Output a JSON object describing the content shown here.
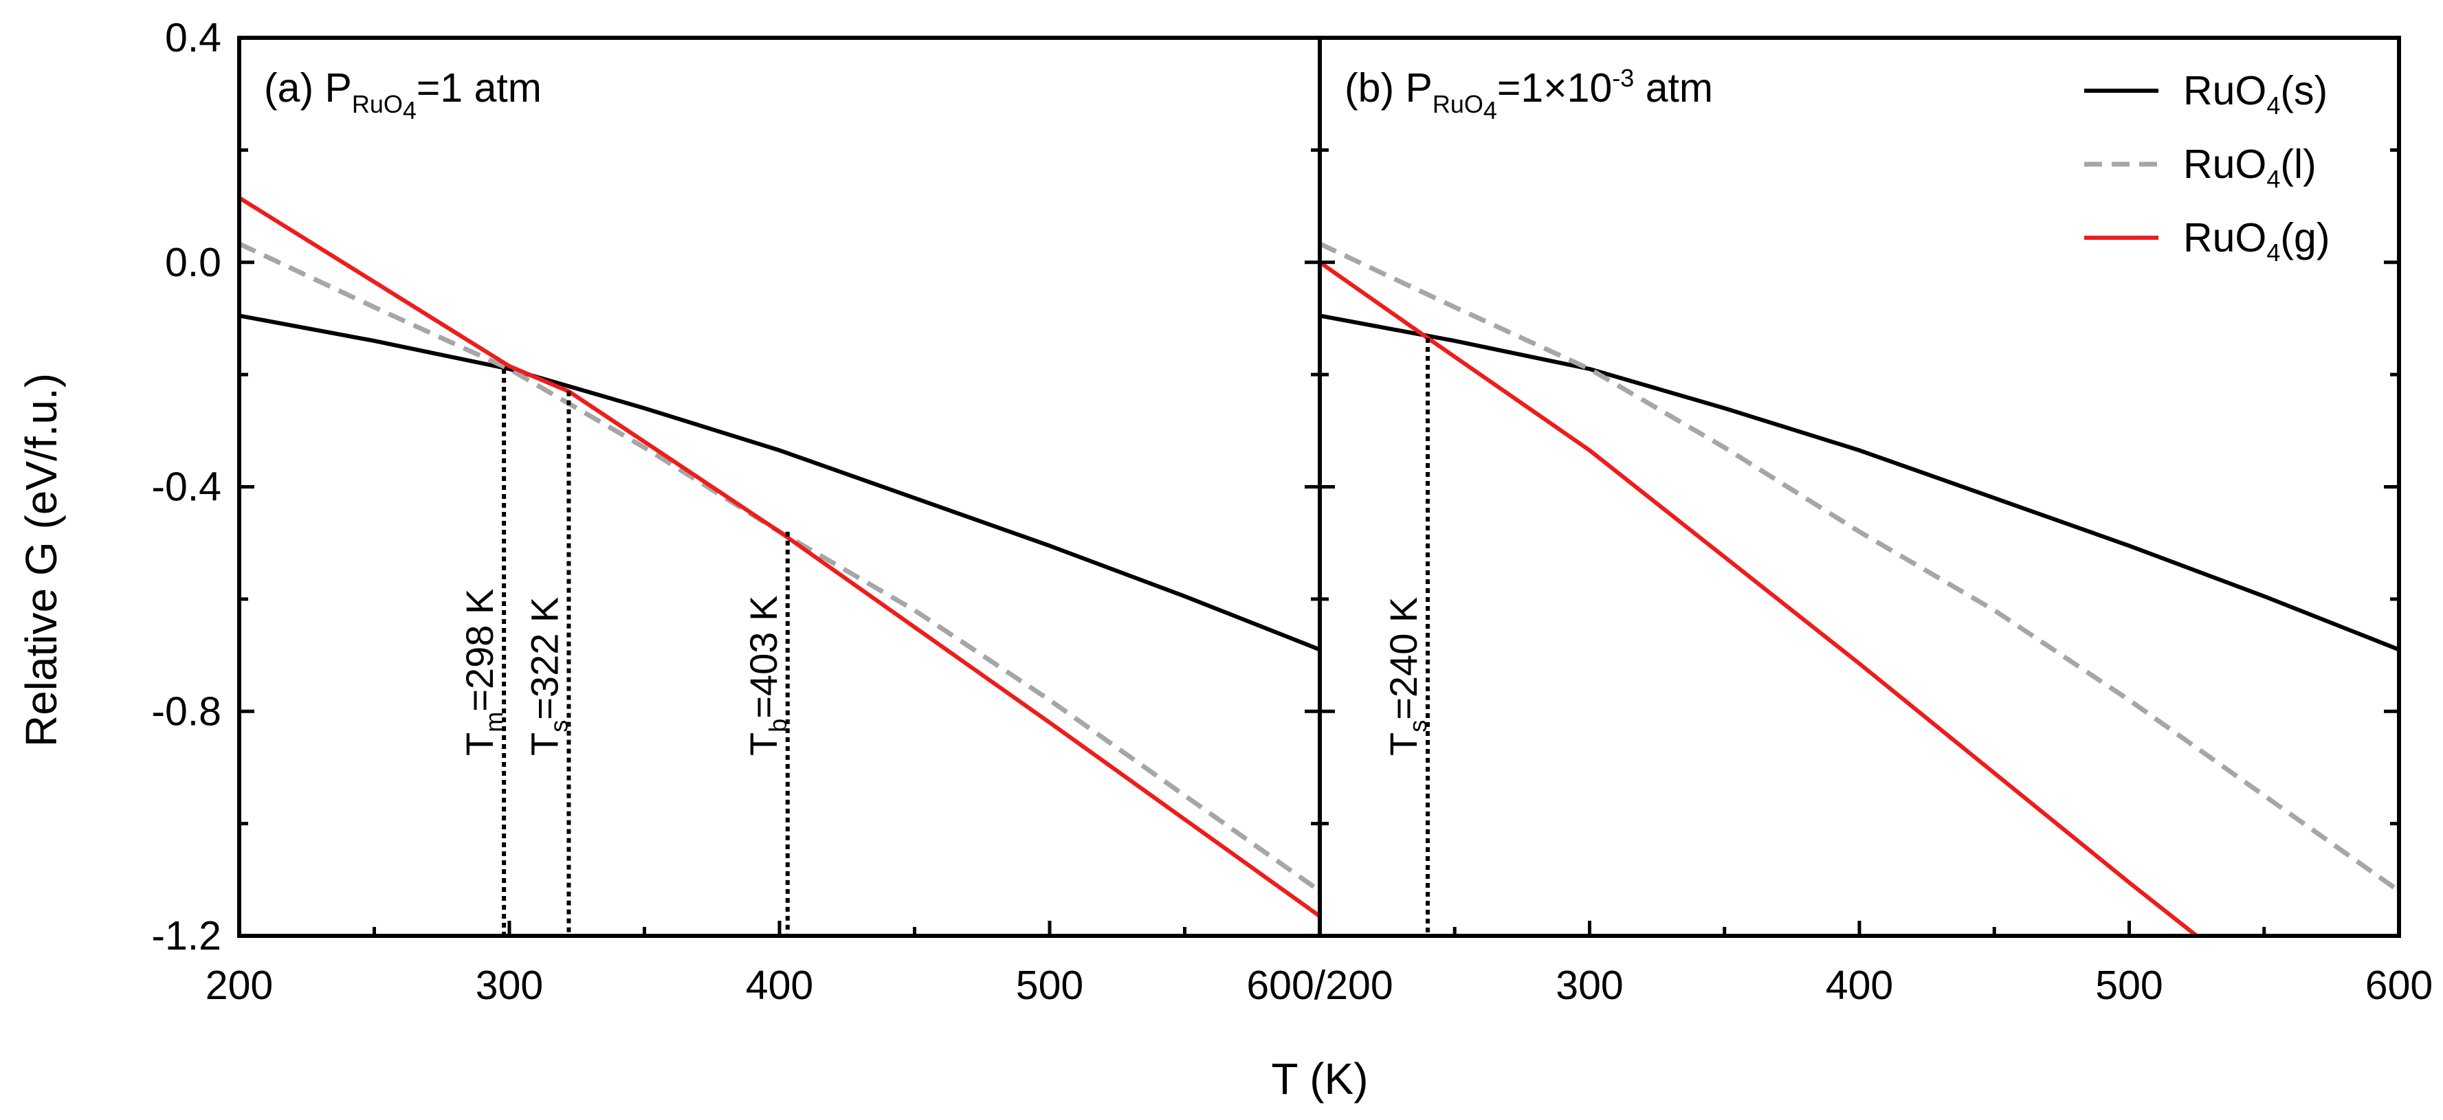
{
  "chart_data": {
    "type": "line",
    "xlabel": "T (K)",
    "ylabel": "Relative G (eV/f.u.)",
    "ylim": [
      -1.2,
      0.4
    ],
    "yticks": [
      -1.2,
      -0.8,
      -0.4,
      0.0,
      0.4
    ],
    "ytick_labels": [
      "-1.2",
      "-0.8",
      "-0.4",
      "0.0",
      "0.4"
    ],
    "grid": false,
    "legend": {
      "placement": "top-right",
      "entries": [
        {
          "base": "RuO",
          "sub": "4",
          "tail": "(s)",
          "color": "#000000",
          "style": "solid"
        },
        {
          "base": "RuO",
          "sub": "4",
          "tail": "(l)",
          "color": "#a6a6a6",
          "style": "dashed"
        },
        {
          "base": "RuO",
          "sub": "4",
          "tail": "(g)",
          "color": "#ee1c1c",
          "style": "solid"
        }
      ]
    },
    "panels": [
      {
        "id": "a",
        "title_prefix": "(a) P",
        "title_sub": "RuO",
        "title_sub2": "4",
        "title_suffix": "=1 atm",
        "xlim": [
          200,
          600
        ],
        "xticks": [
          200,
          300,
          400,
          500,
          600
        ],
        "xtick_labels": [
          "200",
          "300",
          "400",
          "500",
          "600/200"
        ],
        "series": [
          {
            "name": "RuO4(s)",
            "color": "#000000",
            "style": "solid",
            "x": [
              200,
              250,
              300,
              350,
              400,
              450,
              500,
              550,
              600
            ],
            "y": [
              -0.095,
              -0.14,
              -0.19,
              -0.26,
              -0.335,
              -0.42,
              -0.505,
              -0.595,
              -0.69
            ]
          },
          {
            "name": "RuO4(l)",
            "color": "#a6a6a6",
            "style": "dashed",
            "x": [
              200,
              250,
              300,
              350,
              400,
              450,
              500,
              550,
              600
            ],
            "y": [
              0.033,
              -0.08,
              -0.19,
              -0.33,
              -0.48,
              -0.62,
              -0.78,
              -0.95,
              -1.12
            ]
          },
          {
            "name": "RuO4(g)",
            "color": "#ee1c1c",
            "style": "solid",
            "x": [
              200,
              300,
              322,
              400,
              500,
              600
            ],
            "y": [
              0.115,
              -0.185,
              -0.23,
              -0.48,
              -0.82,
              -1.165
            ]
          }
        ],
        "markers": [
          {
            "x": 298,
            "y": -0.19,
            "label": "T",
            "sub": "m",
            "tail": "=298 K"
          },
          {
            "x": 322,
            "y": -0.23,
            "label": "T",
            "sub": "s",
            "tail": "=322 K"
          },
          {
            "x": 403,
            "y": -0.48,
            "label": "T",
            "sub": "b",
            "tail": "=403 K"
          }
        ]
      },
      {
        "id": "b",
        "title_prefix": "(b) P",
        "title_sub": "RuO",
        "title_sub2": "4",
        "title_suffix": "=1×10",
        "title_sup": "-3",
        "title_end": " atm",
        "xlim": [
          200,
          600
        ],
        "xticks": [
          300,
          400,
          500,
          600
        ],
        "xtick_labels": [
          "300",
          "400",
          "500",
          "600"
        ],
        "series": [
          {
            "name": "RuO4(s)",
            "color": "#000000",
            "style": "solid",
            "x": [
              200,
              250,
              300,
              350,
              400,
              450,
              500,
              550,
              600
            ],
            "y": [
              -0.095,
              -0.14,
              -0.19,
              -0.26,
              -0.335,
              -0.42,
              -0.505,
              -0.595,
              -0.69
            ]
          },
          {
            "name": "RuO4(l)",
            "color": "#a6a6a6",
            "style": "dashed",
            "x": [
              200,
              250,
              300,
              350,
              400,
              450,
              500,
              550,
              600
            ],
            "y": [
              0.033,
              -0.08,
              -0.19,
              -0.33,
              -0.48,
              -0.62,
              -0.78,
              -0.95,
              -1.12
            ]
          },
          {
            "name": "RuO4(g)",
            "color": "#ee1c1c",
            "style": "solid",
            "x": [
              200,
              240,
              300,
              400,
              500,
              525
            ],
            "y": [
              0.0,
              -0.135,
              -0.335,
              -0.715,
              -1.105,
              -1.2
            ]
          }
        ],
        "markers": [
          {
            "x": 240,
            "y": -0.135,
            "label": "T",
            "sub": "s",
            "tail": "=240 K"
          }
        ]
      }
    ]
  }
}
